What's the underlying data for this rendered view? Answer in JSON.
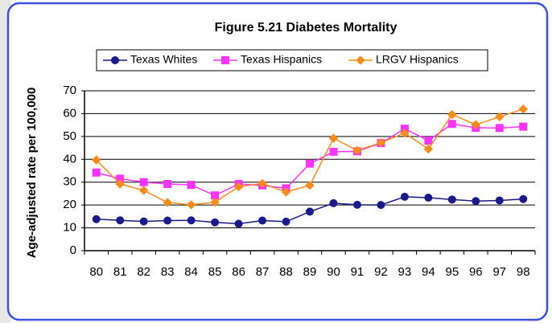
{
  "chart_data": {
    "type": "line",
    "title": "Figure 5.21  Diabetes Mortality",
    "y_label": "Age-adjusted rate per 100,000",
    "categories": [
      "80",
      "81",
      "82",
      "83",
      "84",
      "85",
      "86",
      "87",
      "88",
      "89",
      "90",
      "91",
      "92",
      "93",
      "94",
      "95",
      "96",
      "97",
      "98"
    ],
    "series": [
      {
        "name": "Texas Whites",
        "color": "#1a1a8c",
        "marker": "circle",
        "values": [
          13.8,
          13.3,
          12.8,
          13.2,
          13.3,
          12.4,
          11.8,
          13.2,
          12.7,
          17.1,
          20.8,
          20.1,
          20.0,
          23.6,
          23.2,
          22.4,
          21.7,
          22.0,
          22.6
        ]
      },
      {
        "name": "Texas Hispanics",
        "color": "#ff33ff",
        "marker": "square",
        "values": [
          34.2,
          31.5,
          30.0,
          29.2,
          28.8,
          24.2,
          29.2,
          28.6,
          27.3,
          38.1,
          43.3,
          43.5,
          47.1,
          53.4,
          48.2,
          55.5,
          53.8,
          53.7,
          54.3
        ]
      },
      {
        "name": "LRGV Hispanics",
        "color": "#ff8c1a",
        "marker": "diamond",
        "values": [
          39.7,
          29.2,
          26.4,
          21.1,
          20.1,
          21.2,
          28.0,
          29.4,
          25.7,
          28.6,
          49.2,
          43.9,
          47.3,
          51.5,
          44.5,
          59.6,
          55.2,
          58.6,
          62.0
        ]
      }
    ],
    "ylim": [
      0,
      70
    ],
    "yticks": [
      0,
      10,
      20,
      30,
      40,
      50,
      60,
      70
    ],
    "grid": true,
    "legend": "top"
  }
}
